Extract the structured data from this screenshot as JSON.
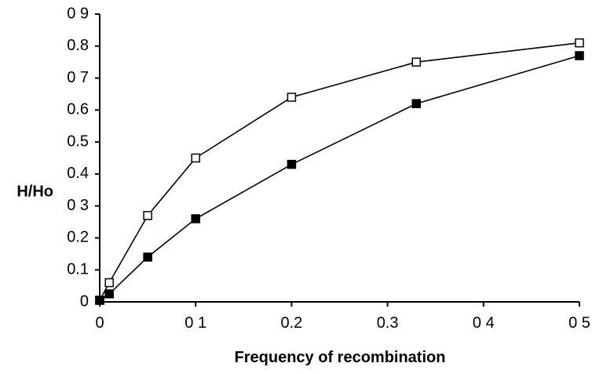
{
  "chart_data": {
    "type": "line",
    "title": "",
    "xlabel": "Frequency of recombination",
    "ylabel": "H/Ho",
    "xlim": [
      0,
      0.5
    ],
    "ylim": [
      0,
      0.9
    ],
    "x_ticks": [
      {
        "value": 0,
        "label": "0"
      },
      {
        "value": 0.1,
        "label": "0 1"
      },
      {
        "value": 0.2,
        "label": "0.2"
      },
      {
        "value": 0.3,
        "label": "0.3"
      },
      {
        "value": 0.4,
        "label": "0 4"
      },
      {
        "value": 0.5,
        "label": "0 5"
      }
    ],
    "y_ticks": [
      {
        "value": 0,
        "label": "0"
      },
      {
        "value": 0.1,
        "label": "0.1"
      },
      {
        "value": 0.2,
        "label": "0.2"
      },
      {
        "value": 0.3,
        "label": "0 3"
      },
      {
        "value": 0.4,
        "label": "0.4"
      },
      {
        "value": 0.5,
        "label": "0.5"
      },
      {
        "value": 0.6,
        "label": "0.6"
      },
      {
        "value": 0.7,
        "label": "0 7"
      },
      {
        "value": 0.8,
        "label": "0.8"
      },
      {
        "value": 0.9,
        "label": "0 9"
      }
    ],
    "grid": false,
    "legend": "none",
    "series": [
      {
        "marker": "open-square",
        "color": "#000000",
        "points": [
          {
            "x": 0,
            "y": 0.005
          },
          {
            "x": 0.01,
            "y": 0.06
          },
          {
            "x": 0.05,
            "y": 0.27
          },
          {
            "x": 0.1,
            "y": 0.45
          },
          {
            "x": 0.2,
            "y": 0.64
          },
          {
            "x": 0.33,
            "y": 0.75
          },
          {
            "x": 0.5,
            "y": 0.81
          }
        ]
      },
      {
        "marker": "filled-square",
        "color": "#000000",
        "points": [
          {
            "x": 0,
            "y": 0.005
          },
          {
            "x": 0.01,
            "y": 0.025
          },
          {
            "x": 0.05,
            "y": 0.14
          },
          {
            "x": 0.1,
            "y": 0.26
          },
          {
            "x": 0.2,
            "y": 0.43
          },
          {
            "x": 0.33,
            "y": 0.62
          },
          {
            "x": 0.5,
            "y": 0.77
          }
        ]
      }
    ]
  }
}
